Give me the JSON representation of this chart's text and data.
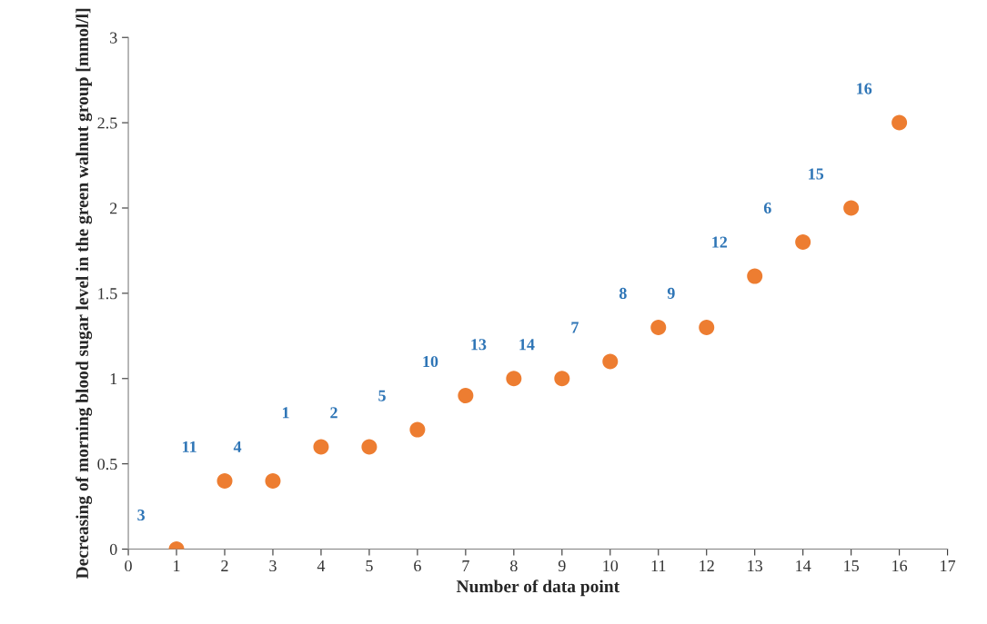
{
  "chart_data": {
    "type": "scatter",
    "xlabel": "Number of data point",
    "ylabel": "Decreasing of morning blood sugar level in the green walnut group [mmol/l]",
    "x": [
      1,
      2,
      3,
      4,
      5,
      6,
      7,
      8,
      9,
      10,
      11,
      12,
      13,
      14,
      15,
      16
    ],
    "series": [
      {
        "color": "#ed7d31",
        "values": [
          0,
          0.4,
          0.4,
          0.6,
          0.6,
          0.7,
          0.9,
          1.0,
          1.0,
          1.1,
          1.3,
          1.3,
          1.6,
          1.8,
          2.0,
          2.5
        ]
      }
    ],
    "annotations": [
      {
        "text": "3",
        "x": 1,
        "y": 0
      },
      {
        "text": "11",
        "x": 2,
        "y": 0.4
      },
      {
        "text": "4",
        "x": 3,
        "y": 0.4
      },
      {
        "text": "1",
        "x": 4,
        "y": 0.6
      },
      {
        "text": "2",
        "x": 5,
        "y": 0.6
      },
      {
        "text": "5",
        "x": 6,
        "y": 0.7
      },
      {
        "text": "10",
        "x": 7,
        "y": 0.9
      },
      {
        "text": "13",
        "x": 8,
        "y": 1.0
      },
      {
        "text": "14",
        "x": 9,
        "y": 1.0
      },
      {
        "text": "7",
        "x": 10,
        "y": 1.1
      },
      {
        "text": "8",
        "x": 11,
        "y": 1.3
      },
      {
        "text": "9",
        "x": 12,
        "y": 1.3
      },
      {
        "text": "12",
        "x": 13,
        "y": 1.6
      },
      {
        "text": "6",
        "x": 14,
        "y": 1.8
      },
      {
        "text": "15",
        "x": 15,
        "y": 2.0
      },
      {
        "text": "16",
        "x": 16,
        "y": 2.5
      }
    ],
    "xlim": [
      0,
      17
    ],
    "xticks": [
      0,
      1,
      2,
      3,
      4,
      5,
      6,
      7,
      8,
      9,
      10,
      11,
      12,
      13,
      14,
      15,
      16,
      17
    ],
    "ylim": [
      0,
      3
    ],
    "yticks": [
      0,
      0.5,
      1,
      1.5,
      2,
      2.5,
      3
    ],
    "marker": "circle",
    "grid": false
  }
}
